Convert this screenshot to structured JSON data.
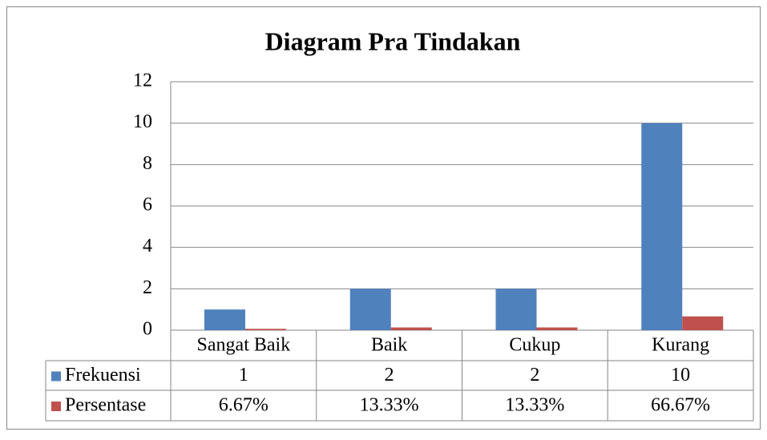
{
  "chart_data": {
    "type": "bar",
    "title": "Diagram Pra Tindakan",
    "categories": [
      "Sangat Baik",
      "Baik",
      "Cukup",
      "Kurang"
    ],
    "series": [
      {
        "name": "Frekuensi",
        "color": "#4f81bd",
        "values": [
          1,
          2,
          2,
          10
        ]
      },
      {
        "name": "Persentase",
        "color": "#c0504d",
        "values": [
          0.0667,
          0.1333,
          0.1333,
          0.6667
        ],
        "value_labels": [
          "6.67%",
          "13.33%",
          "13.33%",
          "66.67%"
        ]
      }
    ],
    "ylim": [
      0,
      12
    ],
    "yticks": [
      0,
      2,
      4,
      6,
      8,
      10,
      12
    ],
    "grid": true,
    "data_table": true
  }
}
